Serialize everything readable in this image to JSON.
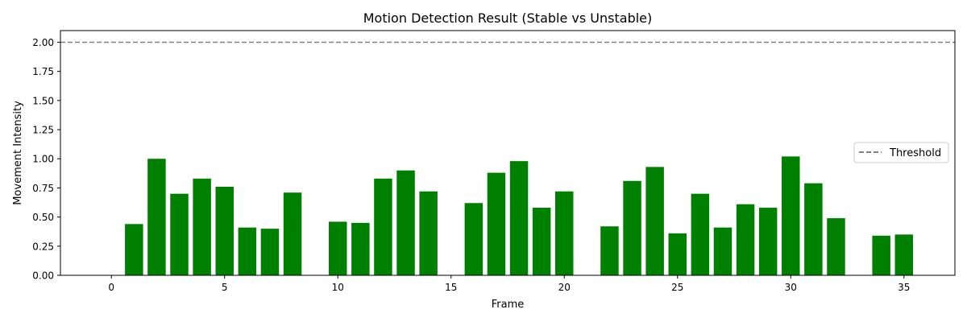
{
  "chart_data": {
    "type": "bar",
    "title": "Motion Detection Result (Stable vs Unstable)",
    "xlabel": "Frame",
    "ylabel": "Movement Intensity",
    "xlim": [
      -2.25,
      37.25
    ],
    "ylim": [
      0.0,
      2.1
    ],
    "xticks": [
      0,
      5,
      10,
      15,
      20,
      25,
      30,
      35
    ],
    "xtick_labels": [
      "0",
      "5",
      "10",
      "15",
      "20",
      "25",
      "30",
      "35"
    ],
    "yticks": [
      0.0,
      0.25,
      0.5,
      0.75,
      1.0,
      1.25,
      1.5,
      1.75,
      2.0
    ],
    "ytick_labels": [
      "0.00",
      "0.25",
      "0.50",
      "0.75",
      "1.00",
      "1.25",
      "1.50",
      "1.75",
      "2.00"
    ],
    "grid": false,
    "legend_position": "center-right",
    "series": [
      {
        "name": "",
        "color": "#008000",
        "x": [
          0,
          1,
          2,
          3,
          4,
          5,
          6,
          7,
          8,
          9,
          10,
          11,
          12,
          13,
          14,
          15,
          16,
          17,
          18,
          19,
          20,
          21,
          22,
          23,
          24,
          25,
          26,
          27,
          28,
          29,
          30,
          31,
          32,
          33,
          34,
          35
        ],
        "values": [
          0.0,
          0.44,
          1.0,
          0.7,
          0.83,
          0.76,
          0.41,
          0.4,
          0.71,
          0.0,
          0.46,
          0.45,
          0.83,
          0.9,
          0.72,
          0.0,
          0.62,
          0.88,
          0.98,
          0.58,
          0.72,
          0.0,
          0.42,
          0.81,
          0.93,
          0.36,
          0.7,
          0.41,
          0.61,
          0.58,
          1.02,
          0.79,
          0.49,
          0.0,
          0.34,
          0.35
        ]
      }
    ],
    "reference_lines": [
      {
        "name": "Threshold",
        "y": 2.0,
        "color": "#808080",
        "style": "dashed"
      }
    ]
  }
}
